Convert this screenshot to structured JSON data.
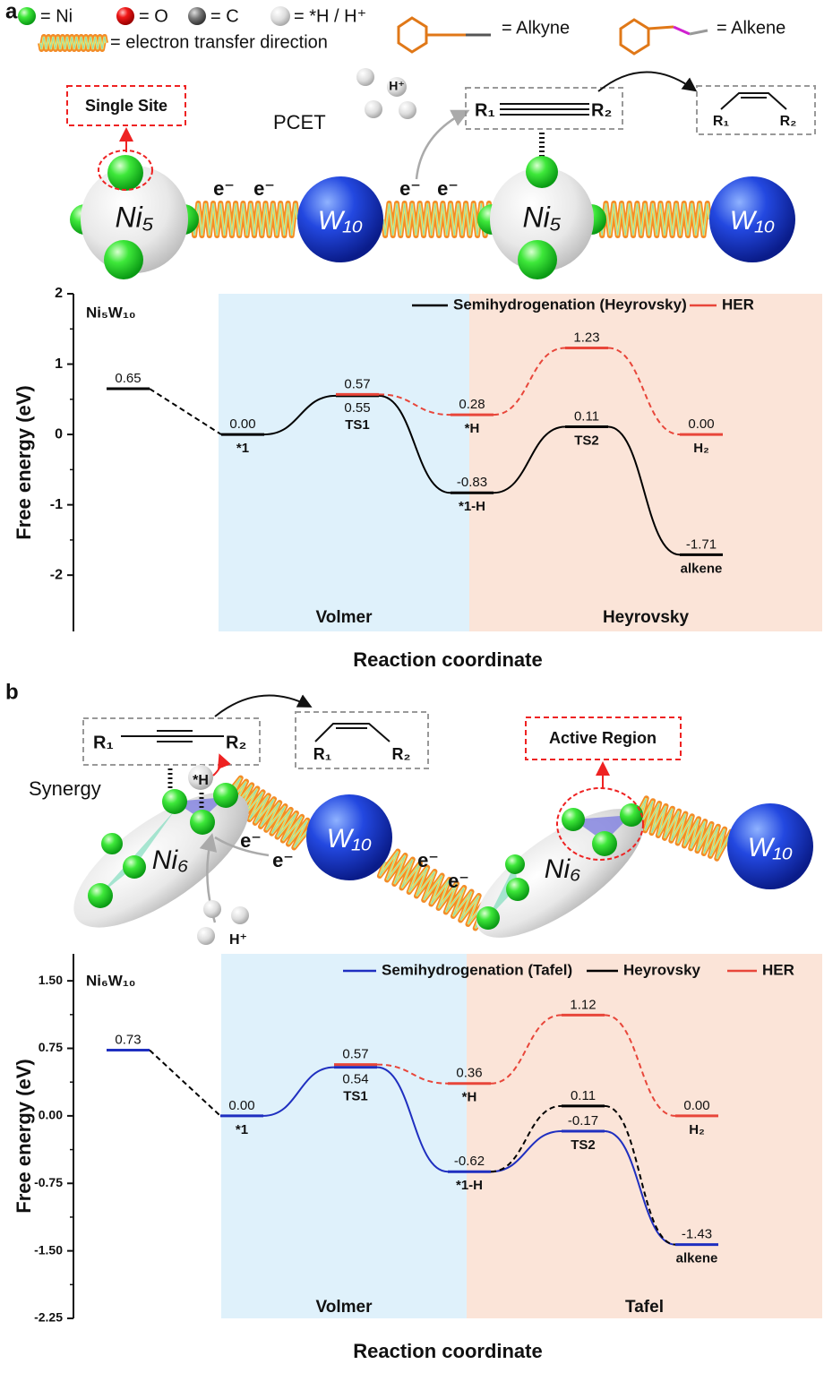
{
  "key": [
    "= Ni",
    "= O",
    "= C",
    "= *H / H⁺",
    "= electron transfer direction",
    "= Alkyne",
    "= Alkene"
  ],
  "panel_a": {
    "letter": "a",
    "single_site": "Single Site",
    "pcet": "PCET",
    "proton": "H⁺",
    "r1": "R₁",
    "r2": "R₂",
    "electrons": [
      "e⁻",
      "e⁻",
      "e⁻",
      "e⁻"
    ],
    "cluster": "Ni₅",
    "tungsten": "W₁₀"
  },
  "panel_b": {
    "letter": "b",
    "active_region": "Active Region",
    "synergy": "Synergy",
    "hydrogen": "*H",
    "proton": "H⁺",
    "r1": "R₁",
    "r2": "R₂",
    "electrons": [
      "e⁻",
      "e⁻",
      "e⁻",
      "e⁻"
    ],
    "cluster": "Ni₆",
    "tungsten": "W₁₀"
  },
  "chart_data": [
    {
      "type": "energy_profile",
      "title": "Ni₅W₁₀",
      "ylabel": "Free energy (eV)",
      "xlabel": "Reaction coordinate",
      "ylim": [
        -2.8,
        2
      ],
      "yticks": [
        -2,
        -1,
        0,
        1,
        2
      ],
      "regions": [
        {
          "name": "Volmer",
          "color": "#dff1fb"
        },
        {
          "name": "Heyrovsky",
          "color": "#fbe4d8"
        }
      ],
      "series": [
        {
          "name": "Semihydrogenation (Heyrovsky)",
          "color": "#000000",
          "dash_color": "#000000",
          "dashed": false,
          "dashed_segments": [
            0
          ],
          "x": [
            0,
            1,
            2,
            3,
            4,
            5
          ],
          "values": [
            0.65,
            0,
            0.55,
            -0.83,
            0.11,
            -1.71
          ],
          "value_labels": [
            "0.65",
            "0.00",
            "0.55",
            "-0.83",
            "0.11",
            "-1.71"
          ],
          "labels": [
            null,
            "*1",
            "TS1",
            "*1-H",
            "TS2",
            "alkene"
          ]
        },
        {
          "name": "HER",
          "color": "#e8463a",
          "dashed": true,
          "x": [
            2,
            3,
            4,
            5
          ],
          "values": [
            0.57,
            0.28,
            1.23,
            0
          ],
          "value_labels": [
            "0.57",
            "0.28",
            "1.23",
            "0.00"
          ],
          "labels": [
            null,
            "*H",
            null,
            "H₂"
          ]
        }
      ]
    },
    {
      "type": "energy_profile",
      "title": "Ni₆W₁₀",
      "ylabel": "Free energy (eV)",
      "xlabel": "Reaction coordinate",
      "ylim": [
        -2.25,
        1.8
      ],
      "yticks": [
        {
          "value": 1.5,
          "label": "1.50"
        },
        0.75,
        {
          "value": 0,
          "label": "0.00"
        },
        -0.75,
        {
          "value": -1.5,
          "label": "-1.50"
        },
        -2.25
      ],
      "regions": [
        {
          "name": "Volmer",
          "color": "#dff1fb"
        },
        {
          "name": "Tafel",
          "color": "#fbe4d8"
        }
      ],
      "series": [
        {
          "name": "Semihydrogenation (Tafel)",
          "color": "#1f2fc0",
          "dash_color": "#000000",
          "dashed": false,
          "dashed_segments": [
            0
          ],
          "x": [
            0,
            1,
            2,
            3,
            4,
            5
          ],
          "values": [
            0.73,
            0,
            0.54,
            -0.62,
            -0.17,
            -1.43
          ],
          "value_labels": [
            "0.73",
            "0.00",
            "0.54",
            "-0.62",
            "-0.17",
            "-1.43"
          ],
          "labels": [
            null,
            "*1",
            "TS1",
            "*1-H",
            "TS2",
            "alkene"
          ]
        },
        {
          "name": "Heyrovsky",
          "color": "#000000",
          "dashed": true,
          "x": [
            3,
            4,
            5
          ],
          "values": [
            -0.62,
            0.11,
            -1.43
          ],
          "value_labels": [
            null,
            "0.11",
            null
          ],
          "labels": [
            null,
            null,
            null
          ]
        },
        {
          "name": "HER",
          "color": "#e8463a",
          "dashed": true,
          "x": [
            2,
            3,
            4,
            5
          ],
          "values": [
            0.57,
            0.36,
            1.12,
            0
          ],
          "value_labels": [
            "0.57",
            "0.36",
            "1.12",
            "0.00"
          ],
          "labels": [
            null,
            "*H",
            null,
            "H₂"
          ]
        }
      ]
    }
  ]
}
